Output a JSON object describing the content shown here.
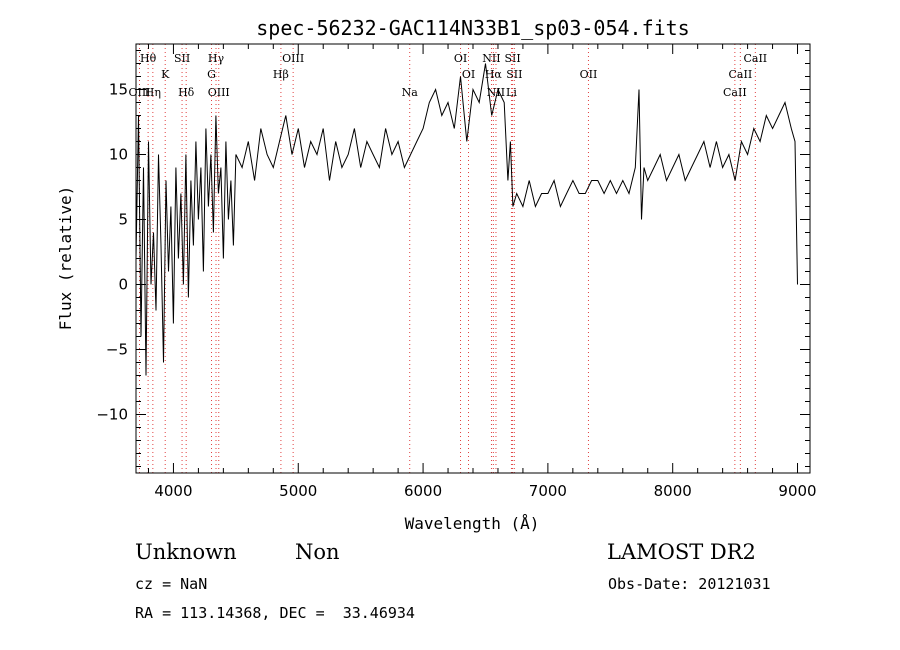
{
  "chart_data": {
    "type": "line",
    "title": "spec-56232-GAC114N33B1_sp03-054.fits",
    "xlabel": "Wavelength (Å)",
    "ylabel": "Flux (relative)",
    "xlim": [
      3700,
      9100
    ],
    "ylim": [
      -14.5,
      18.5
    ],
    "xticks": [
      "4000",
      "5000",
      "6000",
      "7000",
      "8000",
      "9000"
    ],
    "yticks": [
      "−10",
      "−5",
      "0",
      "5",
      "10",
      "15"
    ],
    "grid": false,
    "line_color": "#000000",
    "series": [
      {
        "x": [
          3700,
          3720,
          3740,
          3760,
          3780,
          3800,
          3820,
          3840,
          3860,
          3880,
          3900,
          3920,
          3940,
          3960,
          3980,
          4000,
          4020,
          4040,
          4060,
          4080,
          4100,
          4120,
          4140,
          4160,
          4180,
          4200,
          4220,
          4240,
          4260,
          4280,
          4300,
          4320,
          4340,
          4360,
          4380,
          4400,
          4420,
          4440,
          4460,
          4480,
          4500,
          4550,
          4600,
          4650,
          4700,
          4750,
          4800,
          4850,
          4900,
          4950,
          5000,
          5050,
          5100,
          5150,
          5200,
          5250,
          5300,
          5350,
          5400,
          5450,
          5500,
          5550,
          5600,
          5650,
          5700,
          5750,
          5800,
          5850,
          5900,
          5950,
          6000,
          6050,
          6100,
          6150,
          6200,
          6250,
          6300,
          6350,
          6400,
          6450,
          6500,
          6550,
          6600,
          6650,
          6680,
          6700,
          6720,
          6750,
          6800,
          6850,
          6900,
          6950,
          7000,
          7050,
          7100,
          7150,
          7200,
          7250,
          7300,
          7350,
          7400,
          7450,
          7500,
          7550,
          7600,
          7650,
          7700,
          7730,
          7750,
          7770,
          7800,
          7850,
          7900,
          7950,
          8000,
          8050,
          8100,
          8150,
          8200,
          8250,
          8300,
          8350,
          8400,
          8450,
          8500,
          8550,
          8600,
          8650,
          8700,
          8750,
          8800,
          8850,
          8900,
          8950,
          8980,
          9000
        ],
        "y": [
          2,
          13,
          -4,
          9,
          -7,
          11,
          0,
          4,
          -2,
          10,
          3,
          -6,
          8,
          1,
          6,
          -3,
          9,
          2,
          7,
          0,
          10,
          -1,
          8,
          3,
          11,
          5,
          9,
          1,
          12,
          6,
          10,
          4,
          13,
          7,
          9,
          2,
          11,
          5,
          8,
          3,
          10,
          9,
          11,
          8,
          12,
          10,
          9,
          11,
          13,
          10,
          12,
          9,
          11,
          10,
          12,
          8,
          11,
          9,
          10,
          12,
          9,
          11,
          10,
          9,
          12,
          10,
          11,
          9,
          10,
          11,
          12,
          14,
          15,
          13,
          14,
          12,
          16,
          11,
          15,
          14,
          17,
          13,
          15,
          14,
          8,
          11,
          6,
          7,
          6,
          8,
          6,
          7,
          7,
          8,
          6,
          7,
          8,
          7,
          7,
          8,
          8,
          7,
          8,
          7,
          8,
          7,
          9,
          15,
          5,
          9,
          8,
          9,
          10,
          8,
          9,
          10,
          8,
          9,
          10,
          11,
          9,
          11,
          9,
          10,
          8,
          11,
          10,
          12,
          11,
          13,
          12,
          13,
          14,
          12,
          11,
          0
        ]
      }
    ],
    "lines": [
      {
        "label": "Hθ",
        "x": 3797,
        "row": 0
      },
      {
        "label": "OIII",
        "x": 3728,
        "row": 2
      },
      {
        "label": "Hη",
        "x": 3835,
        "row": 2
      },
      {
        "label": "K",
        "x": 3934,
        "row": 1
      },
      {
        "label": "SII",
        "x": 4069,
        "row": 0
      },
      {
        "label": "Hδ",
        "x": 4102,
        "row": 2
      },
      {
        "label": "Hγ",
        "x": 4341,
        "row": 0
      },
      {
        "label": "G",
        "x": 4305,
        "row": 1
      },
      {
        "label": "OIII",
        "x": 4363,
        "row": 2
      },
      {
        "label": "OIII",
        "x": 4959,
        "row": 0
      },
      {
        "label": "Hβ",
        "x": 4861,
        "row": 1
      },
      {
        "label": "Na",
        "x": 5893,
        "row": 2
      },
      {
        "label": "OI",
        "x": 6300,
        "row": 0
      },
      {
        "label": "OI",
        "x": 6364,
        "row": 1
      },
      {
        "label": "NII",
        "x": 6548,
        "row": 0
      },
      {
        "label": "NII",
        "x": 6584,
        "row": 2
      },
      {
        "label": "Hα",
        "x": 6563,
        "row": 1
      },
      {
        "label": "SII",
        "x": 6717,
        "row": 0
      },
      {
        "label": "SII",
        "x": 6731,
        "row": 1
      },
      {
        "label": "Li",
        "x": 6708,
        "row": 2
      },
      {
        "label": "OII",
        "x": 7325,
        "row": 1
      },
      {
        "label": "CaII",
        "x": 8662,
        "row": 0
      },
      {
        "label": "CaII",
        "x": 8542,
        "row": 1
      },
      {
        "label": "CaII",
        "x": 8498,
        "row": 2
      }
    ]
  },
  "footer": {
    "class_label": "Unknown",
    "subclass_label": "Non",
    "cz_text": "cz = NaN",
    "radec_text": "RA = 113.14368, DEC =  33.46934",
    "survey_label": "LAMOST DR2",
    "obs_date_text": "Obs-Date: 20121031"
  }
}
